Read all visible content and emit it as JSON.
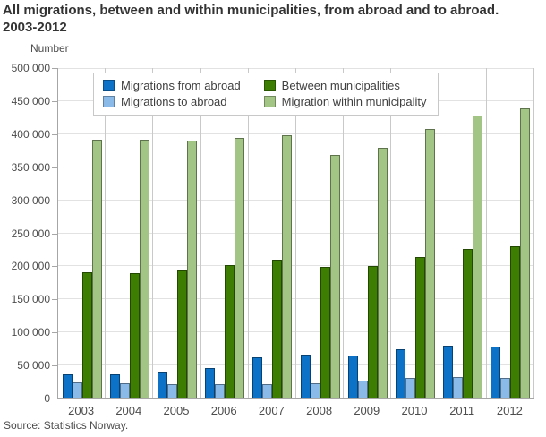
{
  "title_line1": "All migrations, between and within municipalities, from abroad and to abroad.",
  "title_line2": "2003-2012",
  "source": "Source: Statistics Norway.",
  "chart_data": {
    "type": "bar",
    "title": "All migrations, between and within municipalities, from abroad and to abroad. 2003-2012",
    "xlabel": "",
    "ylabel": "Number",
    "ylim": [
      0,
      500000
    ],
    "ytick_step": 50000,
    "ytick_labels": [
      "0",
      "50 000",
      "100 000",
      "150 000",
      "200 000",
      "250 000",
      "300 000",
      "350 000",
      "400 000",
      "450 000",
      "500 000"
    ],
    "grid": true,
    "legend_position": "top-left-inside",
    "categories": [
      "2003",
      "2004",
      "2005",
      "2006",
      "2007",
      "2008",
      "2009",
      "2010",
      "2011",
      "2012"
    ],
    "series": [
      {
        "name": "Migrations from abroad",
        "color": "#0b72c7",
        "values": [
          36000,
          36500,
          40100,
          45800,
          61800,
          67000,
          65200,
          73900,
          79500,
          78600
        ]
      },
      {
        "name": "Migrations to abroad",
        "color": "#8abae8",
        "values": [
          24700,
          23300,
          21700,
          22100,
          22100,
          23600,
          26500,
          31500,
          32500,
          31200
        ]
      },
      {
        "name": "Between municipalities",
        "color": "#3c7d02",
        "values": [
          190400,
          189500,
          193300,
          201700,
          210000,
          199000,
          199900,
          214700,
          226300,
          230700
        ]
      },
      {
        "name": "Migration within municipality",
        "color": "#a2c484",
        "values": [
          392000,
          391500,
          390000,
          394500,
          398500,
          369000,
          379000,
          408500,
          428000,
          439000
        ]
      }
    ]
  }
}
